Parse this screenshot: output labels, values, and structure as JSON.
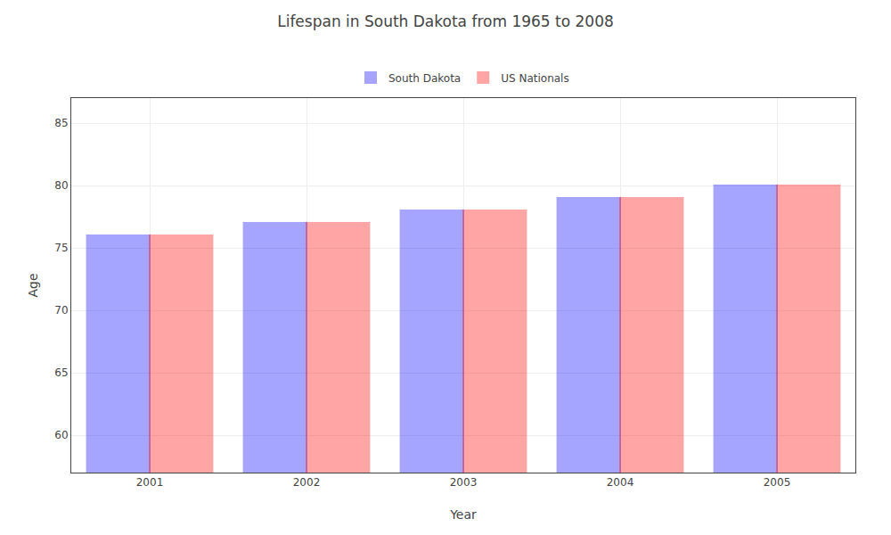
{
  "chart_data": {
    "type": "bar",
    "title": "Lifespan in South Dakota from 1965 to 2008",
    "xlabel": "Year",
    "ylabel": "Age",
    "categories": [
      2001,
      2002,
      2003,
      2004,
      2005
    ],
    "series": [
      {
        "name": "South Dakota",
        "color": "#0000ff",
        "values": [
          76,
          77,
          78,
          79,
          80
        ]
      },
      {
        "name": "US Nationals",
        "color": "#ff0000",
        "values": [
          76,
          77,
          78,
          79,
          80
        ]
      }
    ],
    "ylim": [
      57,
      87
    ],
    "yticks": [
      60,
      65,
      70,
      75,
      80,
      85
    ],
    "grid": true,
    "legend": "top"
  }
}
